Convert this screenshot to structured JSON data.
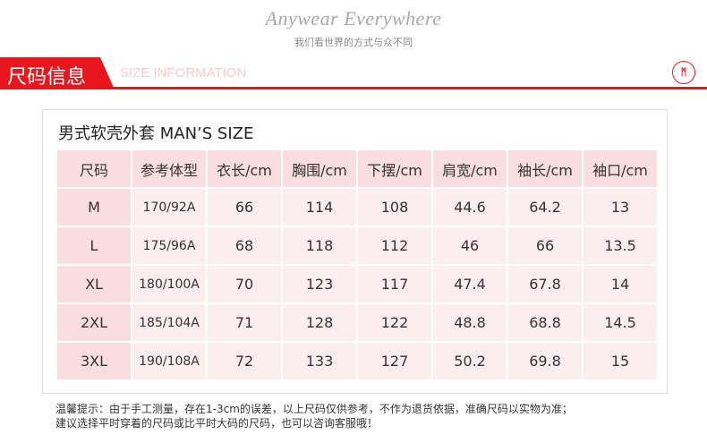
{
  "banner": {
    "slogan": "Anywear Everywhere",
    "subtitle": "我们看世界的方式与众不同"
  },
  "section": {
    "title_cn": "尺码信息",
    "title_en": "SIZE INFORMATION",
    "logo_text": "M",
    "accent_color": "#e8171d"
  },
  "table": {
    "title": "男式软壳外套  MAN’S SIZE",
    "headers": [
      "尺码",
      "参考体型",
      "衣长/cm",
      "胸围/cm",
      "下摆/cm",
      "肩宽/cm",
      "袖长/cm",
      "袖口/cm"
    ],
    "rows": [
      [
        "M",
        "170/92A",
        "66",
        "114",
        "108",
        "44.6",
        "64.2",
        "13"
      ],
      [
        "L",
        "175/96A",
        "68",
        "118",
        "112",
        "46",
        "66",
        "13.5"
      ],
      [
        "XL",
        "180/100A",
        "70",
        "123",
        "117",
        "47.4",
        "67.8",
        "14"
      ],
      [
        "2XL",
        "185/104A",
        "71",
        "128",
        "122",
        "48.8",
        "68.8",
        "14.5"
      ],
      [
        "3XL",
        "190/108A",
        "72",
        "133",
        "127",
        "50.2",
        "69.8",
        "15"
      ]
    ]
  },
  "notes": [
    "温馨提示：由于手工测量，存在1-3cm的误差，以上尺码仅供参考，不作为退货依据，准确尺码以实物为准；",
    "建议选择平时穿着的尺码或比平时大码的尺码，也可以咨询客服哦！"
  ]
}
